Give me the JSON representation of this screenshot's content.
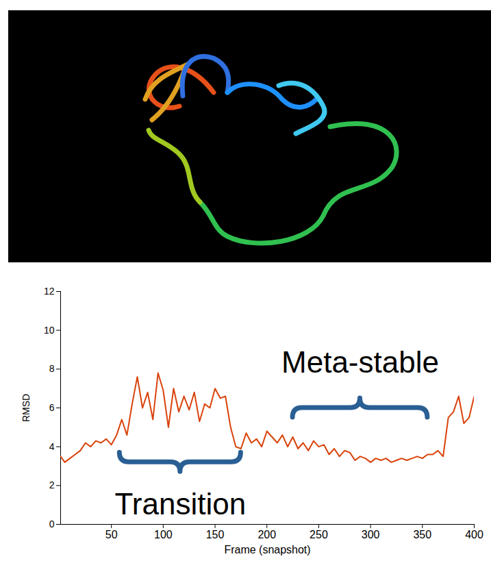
{
  "chart_data": {
    "type": "line",
    "xlabel": "Frame (snapshot)",
    "ylabel": "RMSD",
    "color": "#d9420b",
    "x": [
      1,
      5,
      10,
      15,
      20,
      25,
      30,
      35,
      40,
      45,
      50,
      55,
      60,
      65,
      70,
      75,
      80,
      85,
      90,
      95,
      100,
      105,
      110,
      115,
      120,
      125,
      130,
      135,
      140,
      145,
      150,
      155,
      160,
      165,
      170,
      175,
      180,
      185,
      190,
      195,
      200,
      205,
      210,
      215,
      220,
      225,
      230,
      235,
      240,
      245,
      250,
      255,
      260,
      265,
      270,
      275,
      280,
      285,
      290,
      295,
      300,
      305,
      310,
      315,
      320,
      325,
      330,
      335,
      340,
      345,
      350,
      355,
      360,
      365,
      370,
      375,
      380,
      385,
      390,
      395,
      400
    ],
    "values": [
      3.5,
      3.2,
      3.4,
      3.6,
      3.8,
      4.2,
      4.0,
      4.3,
      4.2,
      4.4,
      4.1,
      4.6,
      5.4,
      4.6,
      6.2,
      7.6,
      6.0,
      6.8,
      5.4,
      7.8,
      6.9,
      5.0,
      7.0,
      5.8,
      6.6,
      5.9,
      6.8,
      5.3,
      6.2,
      6.0,
      7.0,
      6.5,
      6.6,
      5.0,
      4.0,
      3.9,
      4.7,
      4.2,
      4.4,
      4.0,
      4.8,
      4.5,
      4.2,
      4.6,
      4.0,
      4.5,
      3.9,
      4.2,
      3.8,
      4.3,
      4.0,
      4.1,
      3.6,
      3.9,
      3.5,
      3.8,
      3.7,
      3.3,
      3.5,
      3.4,
      3.2,
      3.4,
      3.3,
      3.4,
      3.2,
      3.3,
      3.4,
      3.3,
      3.4,
      3.5,
      3.4,
      3.6,
      3.6,
      3.8,
      3.5,
      5.5,
      5.8,
      6.6,
      5.2,
      5.5,
      6.6
    ],
    "xlim": [
      1,
      400
    ],
    "xticks": [
      50,
      100,
      150,
      200,
      250,
      300,
      350,
      400
    ],
    "ylim": [
      0,
      12
    ],
    "yticks": [
      0,
      2,
      4,
      6,
      8,
      10,
      12
    ],
    "annotations": [
      {
        "text": "Transition",
        "x": [
          58,
          175
        ],
        "y": 3.2,
        "text_y": 1.0
      },
      {
        "text": "Meta-stable",
        "x": [
          225,
          355
        ],
        "y": 6.0,
        "text_y": 8.3
      }
    ]
  }
}
